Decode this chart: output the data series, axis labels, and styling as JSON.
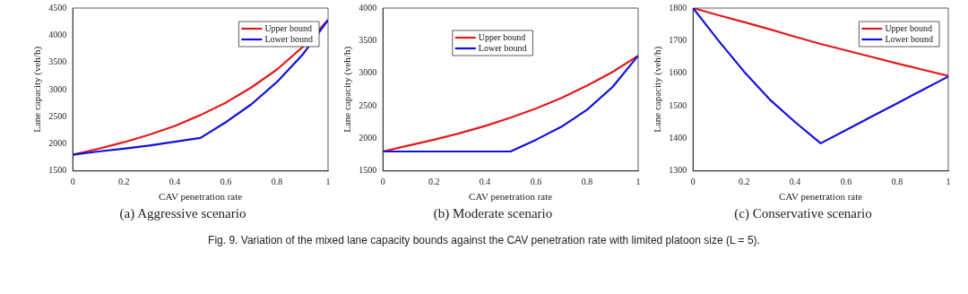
{
  "chart_data": [
    {
      "type": "line",
      "title": "(a) Aggressive scenario",
      "xlabel": "CAV penetration rate",
      "ylabel": "Lane capacity (veh/h)",
      "x": [
        0,
        0.1,
        0.2,
        0.3,
        0.4,
        0.5,
        0.6,
        0.7,
        0.8,
        0.9,
        1
      ],
      "series": [
        {
          "name": "Upper bound",
          "color": "#e41a1c",
          "values": [
            1800,
            1910,
            2030,
            2170,
            2330,
            2530,
            2760,
            3040,
            3370,
            3780,
            4280
          ]
        },
        {
          "name": "Lower bound",
          "color": "#1010e0",
          "values": [
            1800,
            1860,
            1910,
            1970,
            2040,
            2110,
            2400,
            2730,
            3140,
            3640,
            4280
          ]
        }
      ],
      "xlim": [
        0,
        1
      ],
      "xticks": [
        0,
        0.2,
        0.4,
        0.6,
        0.8,
        1
      ],
      "ylim": [
        1500,
        4500
      ],
      "yticks": [
        1500,
        2000,
        2500,
        3000,
        3500,
        4000,
        4500
      ],
      "legend": "top right",
      "marker": "none",
      "line_style": "solid",
      "annotations": [
        "Fig. 9.  Variation of the mixed lane capacity bounds against the CAV penetration rate with limited platoon size (L = 5)."
      ]
    },
    {
      "type": "line",
      "title": "(b) Moderate scenario",
      "xlabel": "CAV penetration rate",
      "ylabel": "Lane capacity (veh/h)",
      "x": [
        0,
        0.1,
        0.2,
        0.3,
        0.4,
        0.5,
        0.6,
        0.7,
        0.8,
        0.9,
        1
      ],
      "series": [
        {
          "name": "Upper bound",
          "color": "#e41a1c",
          "values": [
            1800,
            1890,
            1980,
            2080,
            2190,
            2320,
            2460,
            2620,
            2810,
            3020,
            3270
          ]
        },
        {
          "name": "Lower bound",
          "color": "#1010e0",
          "values": [
            1800,
            1800,
            1800,
            1800,
            1800,
            1800,
            1980,
            2180,
            2440,
            2790,
            3270
          ]
        }
      ],
      "xlim": [
        0,
        1
      ],
      "xticks": [
        0,
        0.2,
        0.4,
        0.6,
        0.8,
        1
      ],
      "ylim": [
        1500,
        4000
      ],
      "yticks": [
        1500,
        2000,
        2500,
        3000,
        3500,
        4000
      ],
      "legend": "top",
      "marker": "none",
      "line_style": "solid"
    },
    {
      "type": "line",
      "title": "(c) Conservative scenario",
      "xlabel": "CAV penetration rate",
      "ylabel": "Lane capacity (veh/h)",
      "x": [
        0,
        0.1,
        0.2,
        0.3,
        0.4,
        0.5,
        0.6,
        0.7,
        0.8,
        0.9,
        1
      ],
      "series": [
        {
          "name": "Upper bound",
          "color": "#e41a1c",
          "values": [
            1800,
            1778,
            1757,
            1735,
            1712,
            1690,
            1670,
            1650,
            1630,
            1611,
            1592
          ]
        },
        {
          "name": "Lower bound",
          "color": "#1010e0",
          "values": [
            1800,
            1700,
            1605,
            1520,
            1450,
            1385,
            1426,
            1467,
            1508,
            1549,
            1590
          ]
        }
      ],
      "xlim": [
        0,
        1
      ],
      "xticks": [
        0,
        0.2,
        0.4,
        0.6,
        0.8,
        1
      ],
      "ylim": [
        1300,
        1800
      ],
      "yticks": [
        1300,
        1400,
        1500,
        1600,
        1700,
        1800
      ],
      "legend": "top right",
      "marker": "none",
      "line_style": "solid"
    }
  ]
}
